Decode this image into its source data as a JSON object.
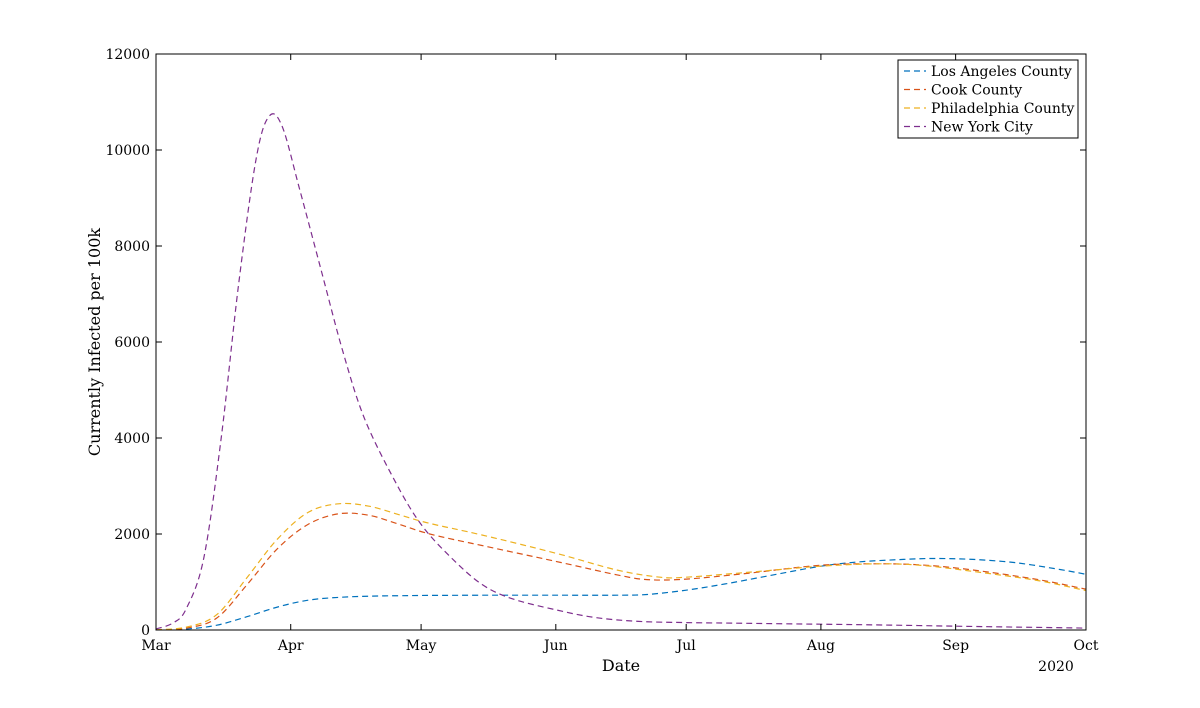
{
  "chart_data": {
    "type": "line",
    "title": "",
    "xlabel": "Date",
    "ylabel": "Currently Infected per 100k",
    "year_label": "2020",
    "xlim": [
      "2020-03-01",
      "2020-10-01"
    ],
    "ylim": [
      0,
      12000
    ],
    "x_ticks": [
      {
        "date": "2020-03-01",
        "label": "Mar"
      },
      {
        "date": "2020-04-01",
        "label": "Apr"
      },
      {
        "date": "2020-05-01",
        "label": "May"
      },
      {
        "date": "2020-06-01",
        "label": "Jun"
      },
      {
        "date": "2020-07-01",
        "label": "Jul"
      },
      {
        "date": "2020-08-01",
        "label": "Aug"
      },
      {
        "date": "2020-09-01",
        "label": "Sep"
      },
      {
        "date": "2020-10-01",
        "label": "Oct"
      }
    ],
    "y_ticks": [
      0,
      2000,
      4000,
      6000,
      8000,
      10000,
      12000
    ],
    "grid": false,
    "legend_position": "top-right",
    "line_style": "dashed",
    "series": [
      {
        "name": "Los Angeles County",
        "color": "#0072BD",
        "points": [
          [
            "2020-03-01",
            5
          ],
          [
            "2020-03-08",
            20
          ],
          [
            "2020-03-15",
            100
          ],
          [
            "2020-03-22",
            280
          ],
          [
            "2020-03-29",
            480
          ],
          [
            "2020-04-05",
            620
          ],
          [
            "2020-04-12",
            680
          ],
          [
            "2020-04-19",
            705
          ],
          [
            "2020-04-26",
            715
          ],
          [
            "2020-05-03",
            720
          ],
          [
            "2020-05-17",
            725
          ],
          [
            "2020-06-01",
            725
          ],
          [
            "2020-06-15",
            725
          ],
          [
            "2020-06-22",
            740
          ],
          [
            "2020-07-01",
            830
          ],
          [
            "2020-07-10",
            960
          ],
          [
            "2020-07-20",
            1130
          ],
          [
            "2020-08-01",
            1330
          ],
          [
            "2020-08-10",
            1420
          ],
          [
            "2020-08-20",
            1470
          ],
          [
            "2020-08-27",
            1490
          ],
          [
            "2020-09-05",
            1470
          ],
          [
            "2020-09-15",
            1400
          ],
          [
            "2020-09-25",
            1260
          ],
          [
            "2020-10-01",
            1160
          ]
        ]
      },
      {
        "name": "Cook County",
        "color": "#D95319",
        "points": [
          [
            "2020-03-01",
            5
          ],
          [
            "2020-03-08",
            40
          ],
          [
            "2020-03-15",
            250
          ],
          [
            "2020-03-22",
            950
          ],
          [
            "2020-03-29",
            1700
          ],
          [
            "2020-04-05",
            2200
          ],
          [
            "2020-04-12",
            2420
          ],
          [
            "2020-04-19",
            2390
          ],
          [
            "2020-04-26",
            2200
          ],
          [
            "2020-05-03",
            2000
          ],
          [
            "2020-05-15",
            1760
          ],
          [
            "2020-06-01",
            1430
          ],
          [
            "2020-06-15",
            1150
          ],
          [
            "2020-06-22",
            1050
          ],
          [
            "2020-07-01",
            1060
          ],
          [
            "2020-07-15",
            1180
          ],
          [
            "2020-08-01",
            1350
          ],
          [
            "2020-08-15",
            1380
          ],
          [
            "2020-08-25",
            1350
          ],
          [
            "2020-09-05",
            1250
          ],
          [
            "2020-09-20",
            1050
          ],
          [
            "2020-10-01",
            850
          ]
        ]
      },
      {
        "name": "Philadelphia County",
        "color": "#EDB120",
        "points": [
          [
            "2020-03-01",
            5
          ],
          [
            "2020-03-08",
            60
          ],
          [
            "2020-03-15",
            320
          ],
          [
            "2020-03-22",
            1100
          ],
          [
            "2020-03-29",
            1900
          ],
          [
            "2020-04-05",
            2450
          ],
          [
            "2020-04-12",
            2630
          ],
          [
            "2020-04-19",
            2580
          ],
          [
            "2020-04-26",
            2400
          ],
          [
            "2020-05-03",
            2220
          ],
          [
            "2020-05-15",
            1980
          ],
          [
            "2020-06-01",
            1600
          ],
          [
            "2020-06-15",
            1250
          ],
          [
            "2020-06-25",
            1100
          ],
          [
            "2020-07-01",
            1100
          ],
          [
            "2020-07-15",
            1200
          ],
          [
            "2020-08-01",
            1330
          ],
          [
            "2020-08-15",
            1380
          ],
          [
            "2020-08-25",
            1340
          ],
          [
            "2020-09-05",
            1220
          ],
          [
            "2020-09-20",
            1030
          ],
          [
            "2020-10-01",
            820
          ]
        ]
      },
      {
        "name": "New York City",
        "color": "#7E2F8E",
        "points": [
          [
            "2020-03-01",
            20
          ],
          [
            "2020-03-05",
            150
          ],
          [
            "2020-03-08",
            450
          ],
          [
            "2020-03-12",
            1500
          ],
          [
            "2020-03-16",
            4000
          ],
          [
            "2020-03-20",
            7200
          ],
          [
            "2020-03-24",
            9800
          ],
          [
            "2020-03-27",
            10700
          ],
          [
            "2020-03-30",
            10500
          ],
          [
            "2020-04-03",
            9200
          ],
          [
            "2020-04-08",
            7500
          ],
          [
            "2020-04-13",
            5800
          ],
          [
            "2020-04-18",
            4400
          ],
          [
            "2020-04-25",
            3100
          ],
          [
            "2020-05-01",
            2200
          ],
          [
            "2020-05-08",
            1500
          ],
          [
            "2020-05-15",
            950
          ],
          [
            "2020-05-22",
            650
          ],
          [
            "2020-06-01",
            420
          ],
          [
            "2020-06-10",
            260
          ],
          [
            "2020-06-20",
            180
          ],
          [
            "2020-07-01",
            155
          ],
          [
            "2020-07-15",
            140
          ],
          [
            "2020-08-01",
            120
          ],
          [
            "2020-08-15",
            105
          ],
          [
            "2020-09-01",
            80
          ],
          [
            "2020-09-15",
            60
          ],
          [
            "2020-10-01",
            40
          ]
        ]
      }
    ]
  }
}
